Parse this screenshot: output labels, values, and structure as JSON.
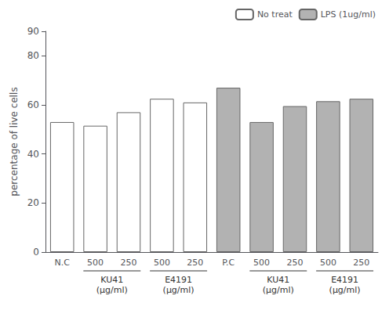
{
  "chart_data": {
    "type": "bar",
    "ylabel": "percentage of live cells",
    "categories": [
      "N.C",
      "500",
      "250",
      "500",
      "250",
      "P.C",
      "500",
      "250",
      "500",
      "250"
    ],
    "series": [
      {
        "name": "No treat",
        "color": "white",
        "values": [
          53.0,
          51.5,
          57.0,
          62.5,
          61.0,
          null,
          null,
          null,
          null,
          null
        ]
      },
      {
        "name": "LPS (1ug/ml)",
        "color": "#b2b2b2",
        "values": [
          null,
          null,
          null,
          null,
          null,
          67.0,
          53.0,
          59.5,
          61.5,
          62.5
        ]
      }
    ],
    "ylim": [
      0,
      90
    ],
    "yticks": [
      0,
      20,
      40,
      60,
      80
    ],
    "grid": false,
    "legend": "upper right",
    "annotations": [
      {
        "text": "KU41\n(μg/ml)",
        "start": 1,
        "end": 2
      },
      {
        "text": "E4191\n(μg/ml)",
        "start": 3,
        "end": 4
      },
      {
        "text": "KU41\n(μg/ml)",
        "start": 6,
        "end": 7
      },
      {
        "text": "E4191\n(μg/ml)",
        "start": 8,
        "end": 9
      }
    ]
  }
}
